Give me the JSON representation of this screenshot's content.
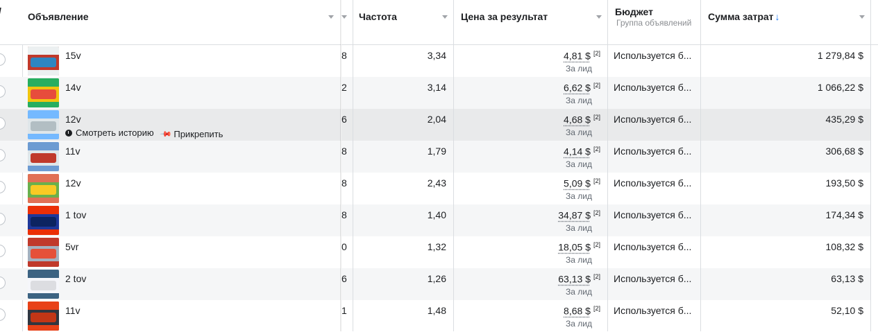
{
  "columns": {
    "ad": "Объявление",
    "frequency": "Частота",
    "cost_per_result": "Цена за результат",
    "budget": "Бюджет",
    "budget_sub": "Группа объявлений",
    "spend": "Сумма затрат",
    "spend_sort": "↓",
    "left_edge_glyph": "/"
  },
  "hover_actions": {
    "history": "Смотреть историю",
    "pin": "Прикрепить"
  },
  "rows": [
    {
      "name": "15v",
      "partial": "8",
      "frequency": "3,34",
      "cpr": "4,81 $",
      "fn": "[2]",
      "cpr_sub": "За лид",
      "budget": "Используется б...",
      "spend": "1 279,84 $",
      "thumb": [
        "#c0392b",
        "#ecf0f1",
        "#2e86c1"
      ]
    },
    {
      "name": "14v",
      "partial": "2",
      "frequency": "3,14",
      "cpr": "6,62 $",
      "fn": "[2]",
      "cpr_sub": "За лид",
      "budget": "Используется б...",
      "spend": "1 066,22 $",
      "thumb": [
        "#f1c40f",
        "#27ae60",
        "#e74c3c"
      ]
    },
    {
      "name": "12v",
      "partial": "6",
      "frequency": "2,04",
      "cpr": "4,68 $",
      "fn": "[2]",
      "cpr_sub": "За лид",
      "budget": "Используется б...",
      "spend": "435,29 $",
      "thumb": [
        "#dfe6e9",
        "#74b9ff",
        "#b2bec3"
      ]
    },
    {
      "name": "11v",
      "partial": "8",
      "frequency": "1,79",
      "cpr": "4,14 $",
      "fn": "[2]",
      "cpr_sub": "За лид",
      "budget": "Используется б...",
      "spend": "306,68 $",
      "thumb": [
        "#dfe6e9",
        "#6c9bd2",
        "#c0392b"
      ]
    },
    {
      "name": "12v",
      "partial": "8",
      "frequency": "2,43",
      "cpr": "5,09 $",
      "fn": "[2]",
      "cpr_sub": "За лид",
      "budget": "Используется б...",
      "spend": "193,50 $",
      "thumb": [
        "#6ab04c",
        "#e17055",
        "#f9ca24"
      ]
    },
    {
      "name": "1 tov",
      "partial": "8",
      "frequency": "1,40",
      "cpr": "34,87 $",
      "fn": "[2]",
      "cpr_sub": "За лид",
      "budget": "Используется б...",
      "spend": "174,34 $",
      "thumb": [
        "#1e3799",
        "#eb2f06",
        "#0c2461"
      ]
    },
    {
      "name": "5vr",
      "partial": "0",
      "frequency": "1,32",
      "cpr": "18,05 $",
      "fn": "[2]",
      "cpr_sub": "За лид",
      "budget": "Используется б...",
      "spend": "108,32 $",
      "thumb": [
        "#a4b0be",
        "#c0392b",
        "#e55039"
      ]
    },
    {
      "name": "2 tov",
      "partial": "6",
      "frequency": "1,26",
      "cpr": "63,13 $",
      "fn": "[2]",
      "cpr_sub": "За лид",
      "budget": "Используется б...",
      "spend": "63,13 $",
      "thumb": [
        "#f5f6fa",
        "#3c6382",
        "#dcdde1"
      ]
    },
    {
      "name": "11v",
      "partial": "1",
      "frequency": "1,48",
      "cpr": "8,68 $",
      "fn": "[2]",
      "cpr_sub": "За лид",
      "budget": "Используется б...",
      "spend": "52,10 $",
      "thumb": [
        "#2f3640",
        "#e84118",
        "#c23616"
      ]
    }
  ]
}
